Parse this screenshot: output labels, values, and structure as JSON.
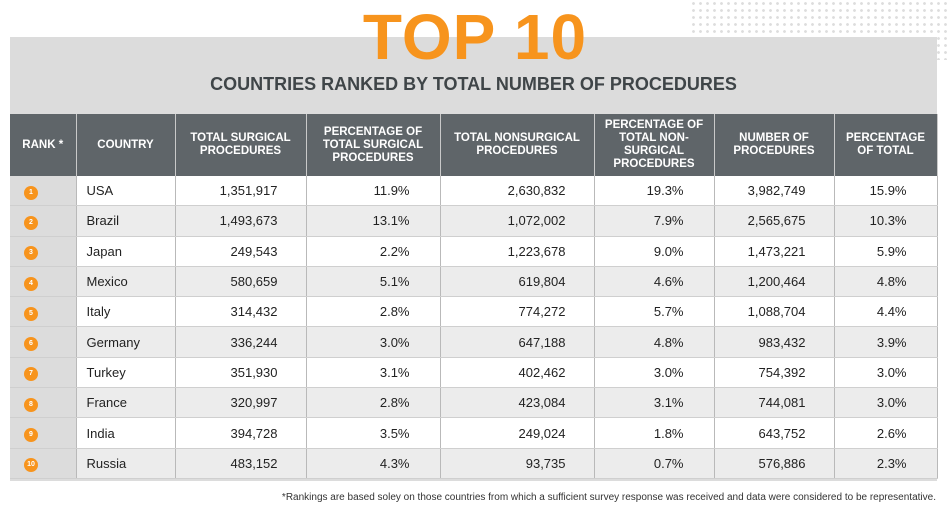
{
  "title": "TOP 10",
  "subtitle": "COUNTRIES RANKED BY TOTAL NUMBER OF PROCEDURES",
  "accent_color": "#F7941D",
  "header_color": "#5f6569",
  "columns": [
    "RANK *",
    "COUNTRY",
    "TOTAL SURGICAL PROCEDURES",
    "PERCENTAGE OF TOTAL SURGICAL PROCEDURES",
    "TOTAL NONSURGICAL PROCEDURES",
    "PERCENTAGE OF TOTAL NON-SURGICAL PROCEDURES",
    "NUMBER OF PROCEDURES",
    "PERCENTAGE OF TOTAL"
  ],
  "rows": [
    {
      "rank": "1",
      "country": "USA",
      "surgical": "1,351,917",
      "surgical_pct": "11.9%",
      "nonsurgical": "2,630,832",
      "nonsurgical_pct": "19.3%",
      "total": "3,982,749",
      "total_pct": "15.9%"
    },
    {
      "rank": "2",
      "country": "Brazil",
      "surgical": "1,493,673",
      "surgical_pct": "13.1%",
      "nonsurgical": "1,072,002",
      "nonsurgical_pct": "7.9%",
      "total": "2,565,675",
      "total_pct": "10.3%"
    },
    {
      "rank": "3",
      "country": "Japan",
      "surgical": "249,543",
      "surgical_pct": "2.2%",
      "nonsurgical": "1,223,678",
      "nonsurgical_pct": "9.0%",
      "total": "1,473,221",
      "total_pct": "5.9%"
    },
    {
      "rank": "4",
      "country": "Mexico",
      "surgical": "580,659",
      "surgical_pct": "5.1%",
      "nonsurgical": "619,804",
      "nonsurgical_pct": "4.6%",
      "total": "1,200,464",
      "total_pct": "4.8%"
    },
    {
      "rank": "5",
      "country": "Italy",
      "surgical": "314,432",
      "surgical_pct": "2.8%",
      "nonsurgical": "774,272",
      "nonsurgical_pct": "5.7%",
      "total": "1,088,704",
      "total_pct": "4.4%"
    },
    {
      "rank": "6",
      "country": "Germany",
      "surgical": "336,244",
      "surgical_pct": "3.0%",
      "nonsurgical": "647,188",
      "nonsurgical_pct": "4.8%",
      "total": "983,432",
      "total_pct": "3.9%"
    },
    {
      "rank": "7",
      "country": "Turkey",
      "surgical": "351,930",
      "surgical_pct": "3.1%",
      "nonsurgical": "402,462",
      "nonsurgical_pct": "3.0%",
      "total": "754,392",
      "total_pct": "3.0%"
    },
    {
      "rank": "8",
      "country": "France",
      "surgical": "320,997",
      "surgical_pct": "2.8%",
      "nonsurgical": "423,084",
      "nonsurgical_pct": "3.1%",
      "total": "744,081",
      "total_pct": "3.0%"
    },
    {
      "rank": "9",
      "country": "India",
      "surgical": "394,728",
      "surgical_pct": "3.5%",
      "nonsurgical": "249,024",
      "nonsurgical_pct": "1.8%",
      "total": "643,752",
      "total_pct": "2.6%"
    },
    {
      "rank": "10",
      "country": "Russia",
      "surgical": "483,152",
      "surgical_pct": "4.3%",
      "nonsurgical": "93,735",
      "nonsurgical_pct": "0.7%",
      "total": "576,886",
      "total_pct": "2.3%"
    }
  ],
  "footnote": "*Rankings are based soley on those countries from which a sufficient survey response was received and data were considered to be representative."
}
